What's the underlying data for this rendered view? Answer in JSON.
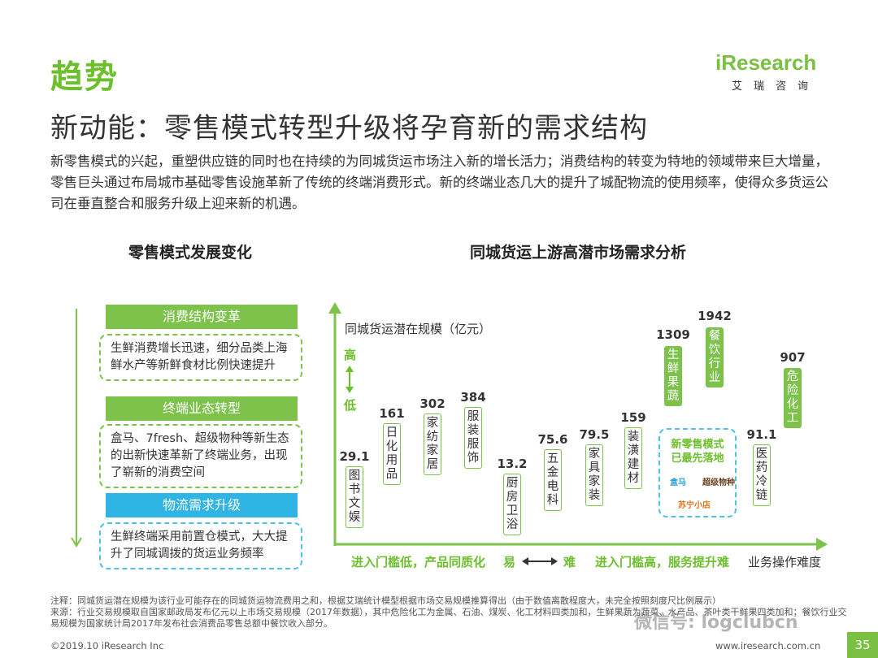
{
  "header": {
    "section_title": "趋势",
    "logo_main": "iResearch",
    "logo_sub": "艾瑞咨询",
    "headline": "新动能：零售模式转型升级将孕育新的需求结构",
    "intro": "新零售模式的兴起，重塑供应链的同时也在持续的为同城货运市场注入新的增长活力；消费结构的转变为特地的领域带来巨大增量，零售巨头通过布局城市基础零售设施革新了传统的终端消费形式。新的终端业态几大的提升了城配物流的使用频率，使得众多货运公司在垂直整合和服务升级上迎来新的机遇。"
  },
  "left_panel": {
    "title": "零售模式发展变化",
    "steps": [
      {
        "label": "消费结构变革",
        "desc": "生鲜消费增长迅速，细分品类上海鲜水产等新鲜食材比例快速提升"
      },
      {
        "label": "终端业态转型",
        "desc": "盒马、7fresh、超级物种等新生态的出新快速革新了终端业务，出现了崭新的消费空间"
      },
      {
        "label": "物流需求升级",
        "desc": "生鲜终端采用前置仓模式，大大提升了同城调拨的货运业务频率"
      }
    ],
    "colors": {
      "green": "#7cc24b",
      "blue": "#2fb5e3"
    }
  },
  "chart_data": {
    "type": "scatter",
    "title": "同城货运上游高潜市场需求分析",
    "ylabel": "同城货运潜在规模（亿元）",
    "xlabel": "业务操作难度",
    "y_high": "高",
    "y_low": "低",
    "x_left_note": "进入门槛低，产品同质化",
    "x_easy": "易",
    "x_hard": "难",
    "x_right_note": "进入门槛高，服务提升难",
    "points": [
      {
        "label": "图书文娱",
        "value": "29.1",
        "style": "white"
      },
      {
        "label": "日化用品",
        "value": "161",
        "style": "white"
      },
      {
        "label": "家纺家居",
        "value": "302",
        "style": "white"
      },
      {
        "label": "服装服饰",
        "value": "384",
        "style": "white"
      },
      {
        "label": "厨房卫浴",
        "value": "13.2",
        "style": "white"
      },
      {
        "label": "五金电科",
        "value": "75.6",
        "style": "white"
      },
      {
        "label": "家具家装",
        "value": "79.5",
        "style": "white"
      },
      {
        "label": "装潢建材",
        "value": "159",
        "style": "white"
      },
      {
        "label": "生鲜果蔬",
        "value": "1309",
        "style": "green"
      },
      {
        "label": "餐饮行业",
        "value": "1942",
        "style": "green"
      },
      {
        "label": "医药冷链",
        "value": "91.1",
        "style": "white"
      },
      {
        "label": "危险化工",
        "value": "907",
        "style": "green"
      }
    ],
    "callout": {
      "title": "新零售模式已最先落地",
      "logos": [
        "盒马",
        "超级物种",
        "苏宁小店"
      ]
    }
  },
  "footer": {
    "note1": "注释：同城货运潜在规模为该行业可能存在的同城货运物流费用之和，根据艾瑞统计模型根据市场交易规模推算得出（由于数值离散程度大，未完全按照刻度尺比例展示）",
    "note2": "来源：行业交易规模取自国家邮政局发布亿元以上市场交易规模（2017年数据），其中危险化工为金属、石油、煤炭、化工材料四类加和，生鲜果蔬为蔬菜、水产品、茶叶类干鲜果四类加和；餐饮行业交易规模为国家统计局2017年发布社会消费品零售总额中餐饮收入部分。",
    "copyright": "©2019.10 iResearch Inc",
    "website": "www.iresearch.com.cn",
    "page": "35",
    "watermark": "微信号: logclubcn"
  }
}
